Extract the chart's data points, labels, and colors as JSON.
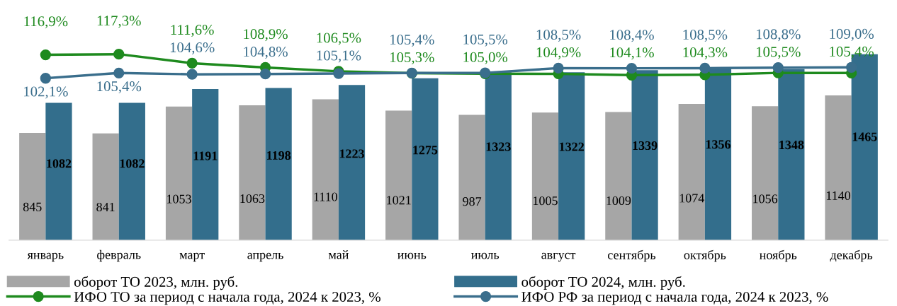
{
  "chart_data": {
    "type": "bar",
    "categories": [
      "январь",
      "февраль",
      "март",
      "апрель",
      "май",
      "июнь",
      "июль",
      "август",
      "сентябрь",
      "октябрь",
      "ноябрь",
      "декабрь"
    ],
    "series": [
      {
        "name": "оборот ТО 2023, млн. руб.",
        "color": "#a6a6a6",
        "values": [
          845,
          841,
          1053,
          1063,
          1110,
          1021,
          987,
          1005,
          1009,
          1074,
          1056,
          1140
        ],
        "value_labels": [
          "845",
          "841",
          "1053",
          "1063",
          "1110",
          "1021",
          "987",
          "1005",
          "1009",
          "1074",
          "1056",
          "1140"
        ]
      },
      {
        "name": "оборот ТО 2024, млн. руб.",
        "color": "#336e8c",
        "values": [
          1082,
          1082,
          1191,
          1198,
          1223,
          1275,
          1323,
          1322,
          1339,
          1356,
          1348,
          1465
        ],
        "value_labels": [
          "1082",
          "1082",
          "1191",
          "1198",
          "1223",
          "1275",
          "1323",
          "1322",
          "1339",
          "1356",
          "1348",
          "1465"
        ]
      },
      {
        "name": "ИФО ТО за период с начала года, 2024 к 2023, %",
        "type": "line",
        "axis": "y2",
        "color": "#1e8a1e",
        "marker": "circle",
        "values": [
          116.9,
          117.3,
          111.6,
          108.9,
          106.5,
          105.3,
          105.0,
          104.9,
          104.1,
          104.3,
          105.5,
          105.4
        ],
        "value_labels": [
          "116,9%",
          "117,3%",
          "111,6%",
          "108,9%",
          "106,5%",
          "105,3%",
          "105,0%",
          "104,9%",
          "104,1%",
          "104,3%",
          "105,5%",
          "105,4%"
        ]
      },
      {
        "name": "ИФО РФ за период с начала года, 2024 к 2023, %",
        "type": "line",
        "axis": "y2",
        "color": "#3a6e8c",
        "marker": "circle",
        "values": [
          102.1,
          105.4,
          104.6,
          104.8,
          105.1,
          105.4,
          105.5,
          108.5,
          108.4,
          108.5,
          108.8,
          109.0
        ],
        "value_labels": [
          "102,1%",
          "105,4%",
          "104,6%",
          "104,8%",
          "105,1%",
          "105,4%",
          "105,5%",
          "108,5%",
          "108,4%",
          "108,5%",
          "108,8%",
          "109,0%"
        ]
      }
    ],
    "legend": "bottom",
    "grid": false,
    "tick_labels": "x"
  }
}
